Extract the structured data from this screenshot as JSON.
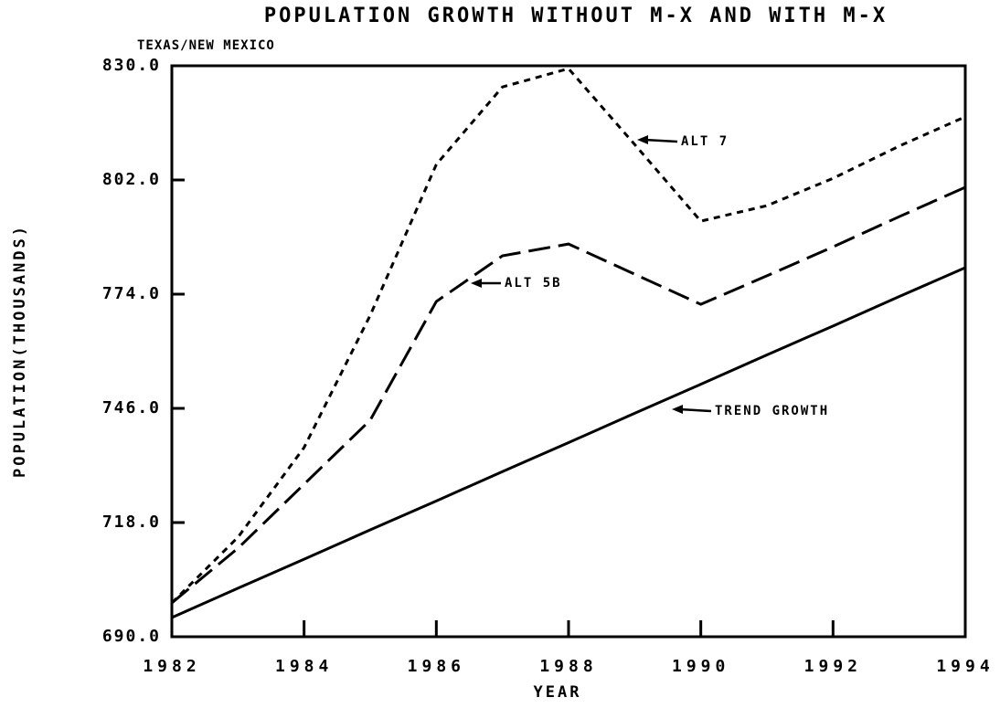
{
  "chart_data": {
    "type": "line",
    "title": "POPULATION GROWTH WITHOUT M-X AND WITH M-X",
    "subtitle": "TEXAS/NEW MEXICO",
    "x_label": "YEAR",
    "y_label": "POPULATION(THOUSANDS)",
    "x": [
      1982,
      1983,
      1984,
      1985,
      1986,
      1987,
      1988,
      1989,
      1990,
      1991,
      1992,
      1993,
      1994
    ],
    "series": [
      {
        "name": "ALT 7",
        "color": "#000000",
        "dash": "short",
        "values": [
          698.3,
          714.4,
          736.4,
          768.8,
          805.8,
          824.8,
          829.3,
          810.7,
          791.9,
          795.7,
          802.4,
          810.3,
          817.5
        ]
      },
      {
        "name": "ALT 5B",
        "color": "#000000",
        "dash": "long",
        "values": [
          698.3,
          711.7,
          727.4,
          743.1,
          772.2,
          783.4,
          786.3,
          778.9,
          771.5,
          778.5,
          785.6,
          793.0,
          800.2
        ]
      },
      {
        "name": "TREND GROWTH",
        "color": "#000000",
        "dash": "solid",
        "values": [
          694.7,
          701.9,
          709.0,
          716.2,
          723.3,
          730.5,
          737.6,
          744.8,
          751.9,
          759.1,
          766.2,
          773.4,
          780.5
        ]
      }
    ],
    "xlim": [
      1982,
      1994
    ],
    "xticks": [
      1982,
      1984,
      1986,
      1988,
      1990,
      1992,
      1994
    ],
    "ylim": [
      690,
      830
    ],
    "yticks": [
      {
        "value": 690,
        "label": "690.0"
      },
      {
        "value": 718,
        "label": "718.0"
      },
      {
        "value": 746,
        "label": "746.0"
      },
      {
        "value": 774,
        "label": "774.0"
      },
      {
        "value": 802,
        "label": "802.0"
      },
      {
        "value": 830,
        "label": "830.0"
      }
    ],
    "grid": false
  }
}
